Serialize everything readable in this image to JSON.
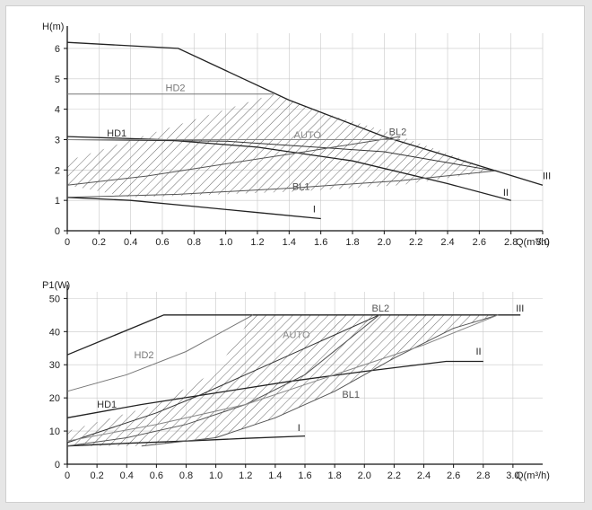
{
  "chart_data": [
    {
      "type": "line",
      "ylabel": "H(m)",
      "xlabel": "Q(m³/h)",
      "xlim": [
        0,
        3.0
      ],
      "ylim": [
        0,
        6.5
      ],
      "x_ticks": [
        "0",
        "0.2",
        "0.4",
        "0.6",
        "0.8",
        "1.0",
        "1.2",
        "1.4",
        "1.6",
        "1.8",
        "2.0",
        "2.2",
        "2.4",
        "2.6",
        "2.8",
        "3.0"
      ],
      "y_ticks": [
        "0",
        "1",
        "2",
        "3",
        "4",
        "5",
        "6"
      ],
      "grid": true,
      "hatched_region": {
        "name": "AUTO",
        "outline": [
          [
            0,
            1.5
          ],
          [
            0,
            2.3
          ],
          [
            1.3,
            4.5
          ],
          [
            1.6,
            3.9
          ],
          [
            2.0,
            3.3
          ],
          [
            2.7,
            1.97
          ],
          [
            2.1,
            1.5
          ],
          [
            1.4,
            1.28
          ],
          [
            0.7,
            1.15
          ],
          [
            0.4,
            1.1
          ]
        ]
      },
      "series": [
        {
          "name": "III",
          "x": [
            0,
            0.7,
            1.4,
            2.0,
            2.5,
            3.0
          ],
          "y": [
            6.2,
            6.0,
            4.3,
            3.1,
            2.3,
            1.5
          ]
        },
        {
          "name": "II",
          "x": [
            0,
            0.6,
            1.2,
            1.8,
            2.4,
            2.8
          ],
          "y": [
            3.1,
            3.0,
            2.75,
            2.3,
            1.55,
            1.0
          ]
        },
        {
          "name": "I",
          "x": [
            0,
            0.4,
            0.8,
            1.2,
            1.6
          ],
          "y": [
            1.1,
            1.0,
            0.8,
            0.6,
            0.4
          ]
        },
        {
          "name": "HD2",
          "x": [
            0,
            1.3
          ],
          "y": [
            4.5,
            4.5
          ]
        },
        {
          "name": "HD1",
          "x": [
            0,
            1.0,
            2.0,
            2.7
          ],
          "y": [
            3.0,
            2.95,
            2.6,
            1.97
          ]
        },
        {
          "name": "BL2",
          "x": [
            0,
            0.5,
            1.0,
            1.5,
            2.1
          ],
          "y": [
            1.5,
            1.8,
            2.2,
            2.6,
            3.1
          ]
        },
        {
          "name": "BL1",
          "x": [
            0,
            0.7,
            1.4,
            2.1,
            2.7
          ],
          "y": [
            1.1,
            1.2,
            1.4,
            1.65,
            1.97
          ]
        },
        {
          "name": "AUTO",
          "x": [
            0,
            1.0,
            2.1
          ],
          "y": [
            3.0,
            3.0,
            3.0
          ]
        }
      ]
    },
    {
      "type": "line",
      "ylabel": "P1(W)",
      "xlabel": "Q(m³/h)",
      "xlim": [
        0,
        3.2
      ],
      "ylim": [
        0,
        52
      ],
      "x_ticks": [
        "0",
        "0.2",
        "0.4",
        "0.6",
        "0.8",
        "1.0",
        "1.2",
        "1.4",
        "1.6",
        "1.8",
        "2.0",
        "2.2",
        "2.4",
        "2.6",
        "2.8",
        "3.0"
      ],
      "y_ticks": [
        "0",
        "10",
        "20",
        "30",
        "40",
        "50"
      ],
      "grid": true,
      "hatched_region": {
        "name": "AUTO",
        "outline": [
          [
            0,
            5.5
          ],
          [
            0,
            10
          ],
          [
            0.6,
            18
          ],
          [
            1.0,
            28
          ],
          [
            1.25,
            45
          ],
          [
            2.9,
            45
          ],
          [
            2.6,
            41
          ],
          [
            2.2,
            32
          ],
          [
            1.8,
            22
          ],
          [
            1.4,
            14
          ],
          [
            1.0,
            8
          ],
          [
            0.5,
            5.5
          ]
        ]
      },
      "series": [
        {
          "name": "III",
          "x": [
            0,
            0.65,
            3.05
          ],
          "y": [
            33,
            45,
            45
          ]
        },
        {
          "name": "II",
          "x": [
            0,
            0.5,
            1.0,
            1.5,
            2.0,
            2.55,
            2.8
          ],
          "y": [
            14,
            18,
            21.5,
            25,
            28,
            31,
            31
          ]
        },
        {
          "name": "I",
          "x": [
            0,
            0.4,
            0.8,
            1.2,
            1.6
          ],
          "y": [
            5.5,
            6.3,
            7.0,
            7.8,
            8.5
          ]
        },
        {
          "name": "HD2",
          "x": [
            0,
            0.4,
            0.8,
            1.25
          ],
          "y": [
            22,
            27,
            34,
            45
          ]
        },
        {
          "name": "HD1",
          "x": [
            0,
            0.3,
            0.6,
            0.9,
            1.2,
            1.5,
            1.8,
            2.1
          ],
          "y": [
            6.5,
            11,
            15.5,
            21,
            27,
            33,
            39,
            45
          ]
        },
        {
          "name": "BL2",
          "x": [
            0,
            0.4,
            0.8,
            1.2,
            1.6,
            2.1
          ],
          "y": [
            5.5,
            8,
            12,
            18,
            27,
            45
          ]
        },
        {
          "name": "BL1",
          "x": [
            0.5,
            1.0,
            1.4,
            1.8,
            2.2,
            2.6,
            2.9
          ],
          "y": [
            5.5,
            8,
            14,
            22,
            32,
            41,
            45
          ]
        },
        {
          "name": "AUTO",
          "x": [
            0,
            0.6,
            1.2,
            1.8,
            2.4,
            2.9
          ],
          "y": [
            7,
            12,
            18,
            27,
            36,
            45
          ]
        }
      ]
    }
  ]
}
